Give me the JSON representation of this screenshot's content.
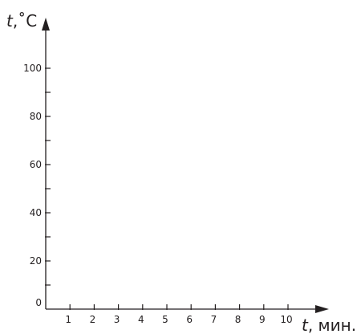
{
  "chart_data": {
    "type": "line",
    "x": [],
    "series": [],
    "xlim": [
      0,
      10
    ],
    "ylim": [
      0,
      100
    ],
    "x_ticks": [
      "1",
      "2",
      "3",
      "4",
      "5",
      "6",
      "7",
      "8",
      "9",
      "10"
    ],
    "y_ticks": [
      "0",
      "20",
      "40",
      "60",
      "80",
      "100"
    ],
    "xlabel": {
      "var": "t",
      "unit": ", мин."
    },
    "ylabel": {
      "var": "t",
      "unit": ",˚C"
    },
    "grid": false,
    "colors": {
      "axis": "#231f20"
    }
  }
}
